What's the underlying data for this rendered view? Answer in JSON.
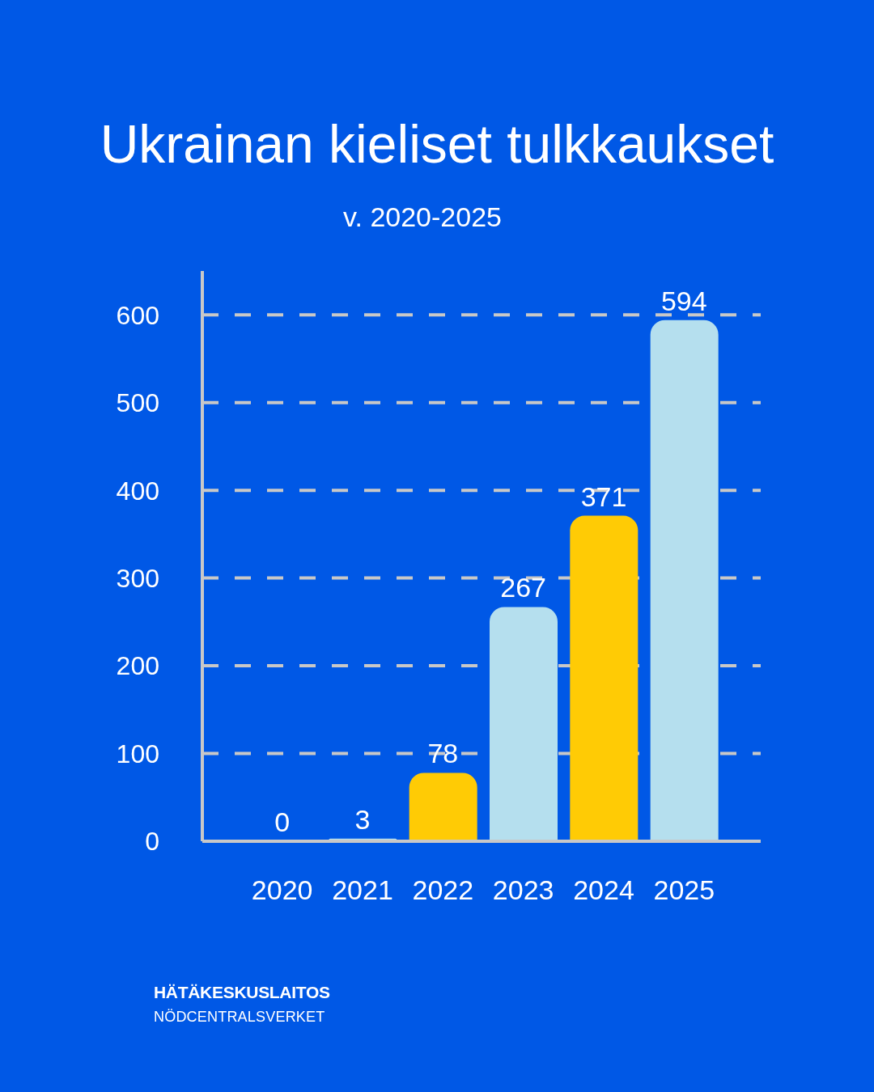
{
  "chart_data": {
    "type": "bar",
    "title": "Ukrainan kieliset tulkkaukset",
    "subtitle": "v. 2020-2025",
    "categories": [
      "2020",
      "2021",
      "2022",
      "2023",
      "2024",
      "2025"
    ],
    "values": [
      0,
      3,
      78,
      267,
      371,
      594
    ],
    "colors": [
      "#b5dfee",
      "#b5dfee",
      "#ffcb05",
      "#b5dfee",
      "#ffcb05",
      "#b5dfee"
    ],
    "ylim": [
      0,
      650
    ],
    "yticks": [
      0,
      100,
      200,
      300,
      400,
      500,
      600
    ],
    "grid": "y",
    "data_labels": true,
    "annotations": [
      "HÄTÄKESKUSLAITOS",
      "NÖDCENTRALSVERKET"
    ]
  }
}
